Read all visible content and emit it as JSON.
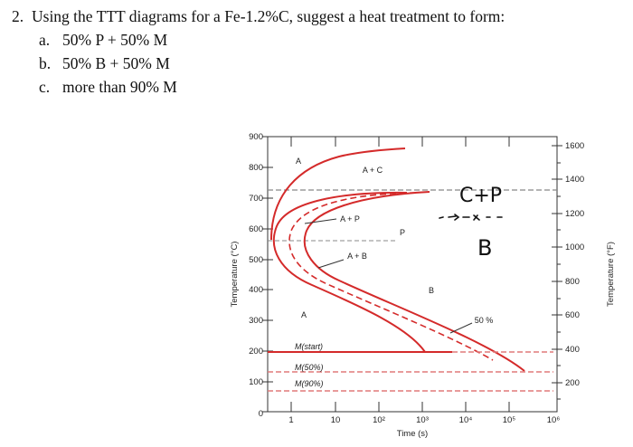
{
  "question": {
    "number": "2.",
    "text": "Using the TTT diagrams for a Fe-1.2%C, suggest a heat treatment to form:",
    "options": [
      {
        "label": "a.",
        "text": "50% P + 50% M"
      },
      {
        "label": "b.",
        "text": "50% B + 50% M"
      },
      {
        "label": "c.",
        "text": "more than 90% M"
      }
    ]
  },
  "diagram": {
    "y_axis_left": {
      "label": "Temperature (°C)",
      "ticks": [
        "900",
        "800",
        "700",
        "600",
        "500",
        "400",
        "300",
        "200",
        "100",
        "0"
      ]
    },
    "y_axis_right": {
      "label": "Temperature (°F)",
      "ticks": [
        "1600",
        "1400",
        "1200",
        "1000",
        "800",
        "600",
        "400",
        "200"
      ]
    },
    "x_axis": {
      "label": "Time (s)",
      "ticks": [
        "1",
        "10",
        "10²",
        "10³",
        "10⁴",
        "10⁵",
        "10⁶"
      ]
    },
    "region_labels": {
      "a_top": "A",
      "a_plus_c": "A + C",
      "a_plus_p": "A + P",
      "p": "P",
      "a_plus_b": "A + B",
      "b": "B",
      "a_low": "A",
      "fifty_percent": "50 %",
      "m_start": "M(start)",
      "m_50": "M(50%)",
      "m_90": "M(90%)"
    },
    "handwriting": {
      "top": "C+P",
      "bottom": "B"
    },
    "colors": {
      "curve": "#d42a2a",
      "dashed": "#e07a7a",
      "grey": "#888888"
    }
  }
}
